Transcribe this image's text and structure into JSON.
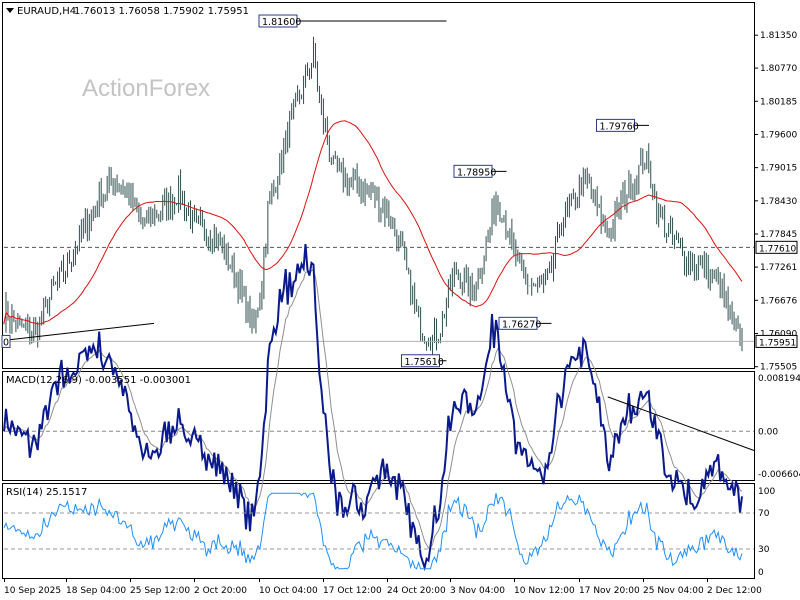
{
  "header": {
    "symbol": "EURAUD,H4",
    "ohlc": "1.76013 1.76058 1.75902 1.75951"
  },
  "watermark": "ActionForex",
  "colors": {
    "bar": "#2f4f4f",
    "ma": "#e01010",
    "macd": "#0a1a8c",
    "signal": "#909090",
    "rsi": "#1e90ff",
    "level": "#555555",
    "trend": "#000000"
  },
  "chart_data": [
    {
      "type": "ohlc",
      "panel": "price",
      "title": "EURAUD,H4 1.76013 1.76058 1.75902 1.75951",
      "ylim": [
        1.755,
        1.819
      ],
      "y_ticks": [
        "1.81350",
        "1.80770",
        "1.80185",
        "1.79600",
        "1.79015",
        "1.78430",
        "1.77845",
        "1.77261",
        "1.76676",
        "1.76090",
        "1.75505"
      ],
      "x_labels": [
        "10 Sep 2025",
        "18 Sep 04:00",
        "25 Sep 12:00",
        "2 Oct 20:00",
        "10 Oct 04:00",
        "17 Oct 12:00",
        "24 Oct 20:00",
        "3 Nov 04:00",
        "10 Nov 12:00",
        "17 Nov 20:00",
        "25 Nov 04:00",
        "2 Dec 12:00"
      ],
      "close_path": [
        [
          0,
          1.765
        ],
        [
          8,
          1.762
        ],
        [
          16,
          1.761
        ],
        [
          24,
          1.768
        ],
        [
          36,
          1.776
        ],
        [
          48,
          1.785
        ],
        [
          56,
          1.788
        ],
        [
          62,
          1.786
        ],
        [
          70,
          1.78
        ],
        [
          80,
          1.783
        ],
        [
          88,
          1.786
        ],
        [
          96,
          1.78
        ],
        [
          104,
          1.779
        ],
        [
          110,
          1.776
        ],
        [
          118,
          1.77
        ],
        [
          122,
          1.765
        ],
        [
          126,
          1.762
        ],
        [
          130,
          1.77
        ],
        [
          133,
          1.783
        ],
        [
          137,
          1.788
        ],
        [
          143,
          1.796
        ],
        [
          150,
          1.804
        ],
        [
          156,
          1.81
        ],
        [
          160,
          1.8
        ],
        [
          166,
          1.79
        ],
        [
          172,
          1.788
        ],
        [
          178,
          1.787
        ],
        [
          184,
          1.786
        ],
        [
          190,
          1.784
        ],
        [
          196,
          1.78
        ],
        [
          200,
          1.776
        ],
        [
          204,
          1.77
        ],
        [
          208,
          1.764
        ],
        [
          212,
          1.761
        ],
        [
          216,
          1.76
        ],
        [
          220,
          1.762
        ],
        [
          224,
          1.768
        ],
        [
          228,
          1.772
        ],
        [
          232,
          1.77
        ],
        [
          236,
          1.768
        ],
        [
          240,
          1.772
        ],
        [
          244,
          1.778
        ],
        [
          248,
          1.785
        ],
        [
          252,
          1.782
        ],
        [
          256,
          1.776
        ],
        [
          260,
          1.772
        ],
        [
          264,
          1.77
        ],
        [
          268,
          1.769
        ],
        [
          272,
          1.769
        ],
        [
          276,
          1.772
        ],
        [
          280,
          1.78
        ],
        [
          284,
          1.782
        ],
        [
          288,
          1.785
        ],
        [
          292,
          1.788
        ],
        [
          296,
          1.786
        ],
        [
          302,
          1.78
        ],
        [
          306,
          1.779
        ],
        [
          312,
          1.785
        ],
        [
          318,
          1.788
        ],
        [
          323,
          1.792
        ],
        [
          326,
          1.788
        ],
        [
          330,
          1.782
        ],
        [
          336,
          1.778
        ],
        [
          342,
          1.775
        ],
        [
          348,
          1.773
        ],
        [
          354,
          1.772
        ],
        [
          360,
          1.77
        ],
        [
          364,
          1.766
        ],
        [
          368,
          1.762
        ],
        [
          372,
          1.76
        ]
      ],
      "n_bars": 373,
      "ma": {
        "period": 34,
        "color": "#e01010"
      },
      "levels": [
        {
          "label": "1.81600",
          "value": 1.816,
          "x_from": 0.34,
          "x_to": 0.59
        },
        {
          "label": "1.78950",
          "value": 1.7895,
          "x_from": 0.6,
          "x_to": 0.67
        },
        {
          "label": "1.79760",
          "value": 1.7976,
          "x_from": 0.79,
          "x_to": 0.86
        },
        {
          "label": "1.76270",
          "value": 1.7627,
          "x_from": 0.66,
          "x_to": 0.73
        },
        {
          "label": "1.75610",
          "value": 1.7561,
          "x_from": 0.53,
          "x_to": 0.59
        }
      ],
      "horizontal_line": {
        "label": "1.77610",
        "value": 1.7761
      },
      "last_price": {
        "label": "1.75951",
        "value": 1.75951
      },
      "left_tag": "0",
      "trendline": [
        [
          0,
          1.7597
        ],
        [
          0.2,
          1.7627
        ]
      ]
    },
    {
      "type": "line",
      "panel": "macd",
      "title": "MACD(12,26,9) -0.003551 -0.003001",
      "ylim": [
        -0.0072,
        0.0088
      ],
      "y_ticks": [
        "0.008194",
        "0.00",
        "-0.006604"
      ],
      "zero_label": "0.00",
      "trendline": [
        [
          0.805,
          0.0052
        ],
        [
          1.0,
          -0.0029
        ]
      ]
    },
    {
      "type": "line",
      "panel": "rsi",
      "title": "RSI(14) 25.1517",
      "ylim": [
        0,
        100
      ],
      "y_ticks": [
        "100",
        "70",
        "30",
        "0"
      ],
      "levels": [
        70,
        30
      ],
      "last": 25.1517
    }
  ]
}
